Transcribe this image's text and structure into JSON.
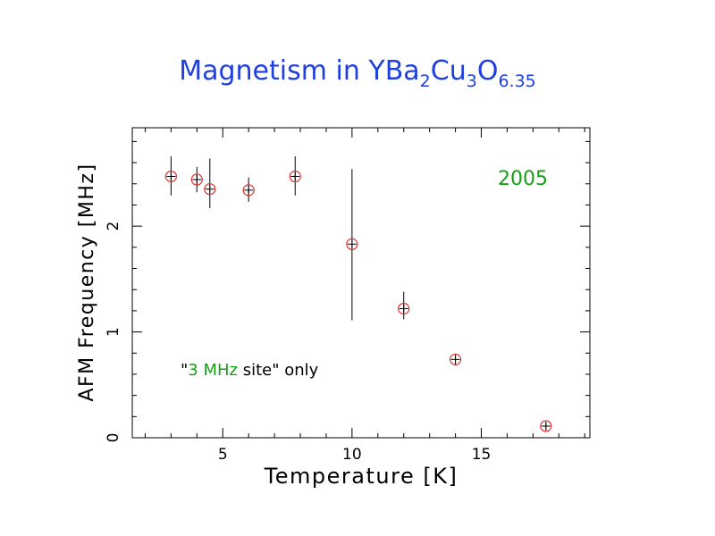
{
  "slide": {
    "title": {
      "text": "Magnetism in YBa",
      "sub1": "2",
      "mid1": "Cu",
      "sub2": "3",
      "mid2": "O",
      "sub3": "6.35"
    },
    "year_label": "2005",
    "note": {
      "open_quote": "\"",
      "highlight": "3 MHz",
      "rest": " site\" only"
    }
  },
  "colors": {
    "title": "#1f3fe0",
    "year": "#16a016",
    "highlight": "#16a016",
    "marker": "#e03030",
    "axis": "#000000"
  },
  "chart_data": {
    "type": "scatter",
    "title": "Magnetism in YBa2Cu3O6.35",
    "xlabel": "Temperature [K]",
    "ylabel": "AFM Frequency [MHz]",
    "xlim": [
      1.5,
      19.2
    ],
    "ylim": [
      0,
      2.93
    ],
    "xticks": [
      5,
      10,
      15
    ],
    "yticks": [
      0,
      1,
      2
    ],
    "minor_xtick_step": 1,
    "minor_ytick_step": 0.2,
    "marker": "open-circle-with-cross",
    "series": [
      {
        "x": [
          3.0,
          4.0,
          4.5,
          6.0,
          7.8,
          10.0,
          12.0,
          14.0,
          17.5
        ],
        "y": [
          2.47,
          2.44,
          2.35,
          2.34,
          2.47,
          1.83,
          1.22,
          0.74,
          0.11
        ],
        "y_low": [
          2.29,
          2.32,
          2.17,
          2.23,
          2.29,
          1.11,
          1.12,
          0.69,
          0.08
        ],
        "y_high": [
          2.66,
          2.56,
          2.64,
          2.46,
          2.66,
          2.54,
          1.38,
          0.79,
          0.14
        ]
      }
    ],
    "annotations": [
      "2005",
      "\"3 MHz site\" only"
    ]
  }
}
